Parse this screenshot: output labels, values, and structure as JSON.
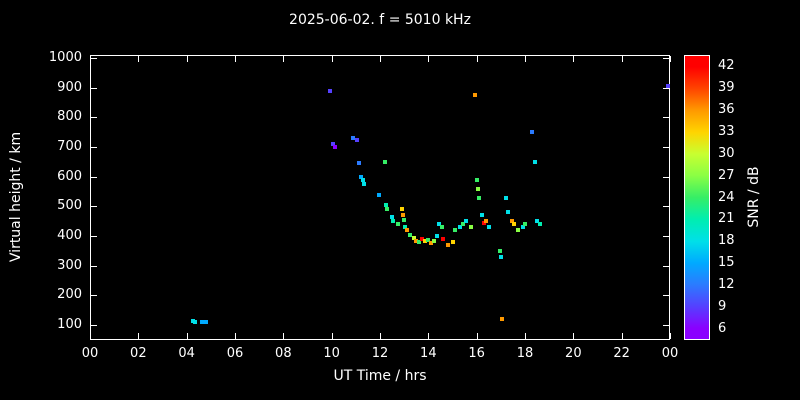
{
  "chart_data": {
    "type": "scatter",
    "title": "2025-06-02. f = 5010 kHz",
    "xlabel": "UT Time / hrs",
    "ylabel": "Virtual height / km",
    "colorbar_label": "SNR / dB",
    "background": "#000000",
    "foreground": "#ffffff",
    "grid": false,
    "x_range": [
      0,
      24
    ],
    "y_range": [
      50,
      1010
    ],
    "x_ticks": {
      "values": [
        0,
        2,
        4,
        6,
        8,
        10,
        12,
        14,
        16,
        18,
        20,
        22,
        24
      ],
      "labels": [
        "00",
        "02",
        "04",
        "06",
        "08",
        "10",
        "12",
        "14",
        "16",
        "18",
        "20",
        "22",
        "00"
      ]
    },
    "y_ticks": [
      100,
      200,
      300,
      400,
      500,
      600,
      700,
      800,
      900,
      1000
    ],
    "colorbar": {
      "range": [
        4.5,
        43.5
      ],
      "ticks": [
        6,
        9,
        12,
        15,
        18,
        21,
        24,
        27,
        30,
        33,
        36,
        39,
        42
      ],
      "stops": [
        {
          "snr": 6,
          "color": "#8a00ff"
        },
        {
          "snr": 9,
          "color": "#5540ff"
        },
        {
          "snr": 12,
          "color": "#2b7bff"
        },
        {
          "snr": 15,
          "color": "#00aaff"
        },
        {
          "snr": 18,
          "color": "#00e0e8"
        },
        {
          "snr": 21,
          "color": "#00eeb0"
        },
        {
          "snr": 24,
          "color": "#36ee66"
        },
        {
          "snr": 27,
          "color": "#8aff44"
        },
        {
          "snr": 30,
          "color": "#c8ff30"
        },
        {
          "snr": 33,
          "color": "#ffd400"
        },
        {
          "snr": 36,
          "color": "#ff9900"
        },
        {
          "snr": 39,
          "color": "#ff4400"
        },
        {
          "snr": 42,
          "color": "#ff0000"
        }
      ]
    },
    "points": [
      [
        4.25,
        115,
        18
      ],
      [
        4.35,
        110,
        18
      ],
      [
        4.65,
        110,
        15
      ],
      [
        4.78,
        112,
        15
      ],
      [
        9.95,
        890,
        9
      ],
      [
        10.05,
        710,
        9
      ],
      [
        10.15,
        700,
        6
      ],
      [
        10.9,
        730,
        12
      ],
      [
        11.05,
        725,
        9
      ],
      [
        11.15,
        645,
        12
      ],
      [
        11.2,
        600,
        15
      ],
      [
        11.3,
        588,
        18
      ],
      [
        11.35,
        575,
        18
      ],
      [
        11.95,
        540,
        15
      ],
      [
        12.2,
        650,
        24
      ],
      [
        12.25,
        505,
        21
      ],
      [
        12.3,
        490,
        24
      ],
      [
        12.5,
        465,
        18
      ],
      [
        12.55,
        450,
        21
      ],
      [
        12.75,
        440,
        24
      ],
      [
        12.9,
        490,
        33
      ],
      [
        12.95,
        470,
        36
      ],
      [
        13.0,
        455,
        24
      ],
      [
        13.05,
        430,
        21
      ],
      [
        13.1,
        420,
        36
      ],
      [
        13.25,
        405,
        24
      ],
      [
        13.4,
        395,
        30
      ],
      [
        13.5,
        385,
        36
      ],
      [
        13.6,
        380,
        24
      ],
      [
        13.75,
        390,
        42
      ],
      [
        13.85,
        382,
        33
      ],
      [
        14.0,
        388,
        24
      ],
      [
        14.1,
        378,
        36
      ],
      [
        14.25,
        385,
        27
      ],
      [
        14.35,
        400,
        18
      ],
      [
        14.45,
        440,
        18
      ],
      [
        14.55,
        430,
        24
      ],
      [
        14.6,
        390,
        42
      ],
      [
        14.8,
        370,
        36
      ],
      [
        15.0,
        380,
        33
      ],
      [
        15.1,
        420,
        24
      ],
      [
        15.3,
        430,
        18
      ],
      [
        15.45,
        440,
        24
      ],
      [
        15.55,
        450,
        18
      ],
      [
        15.75,
        430,
        27
      ],
      [
        15.95,
        875,
        36
      ],
      [
        16.0,
        590,
        24
      ],
      [
        16.05,
        560,
        27
      ],
      [
        16.1,
        530,
        24
      ],
      [
        16.2,
        470,
        18
      ],
      [
        16.3,
        445,
        42
      ],
      [
        16.4,
        450,
        36
      ],
      [
        16.5,
        430,
        18
      ],
      [
        16.95,
        350,
        24
      ],
      [
        17.0,
        330,
        18
      ],
      [
        17.05,
        120,
        36
      ],
      [
        17.2,
        530,
        18
      ],
      [
        17.3,
        480,
        18
      ],
      [
        17.45,
        450,
        36
      ],
      [
        17.55,
        440,
        33
      ],
      [
        17.7,
        420,
        27
      ],
      [
        17.9,
        430,
        18
      ],
      [
        18.0,
        440,
        24
      ],
      [
        18.3,
        750,
        12
      ],
      [
        18.4,
        650,
        18
      ],
      [
        18.5,
        452,
        18
      ],
      [
        18.6,
        442,
        21
      ],
      [
        23.9,
        905,
        9
      ]
    ]
  }
}
